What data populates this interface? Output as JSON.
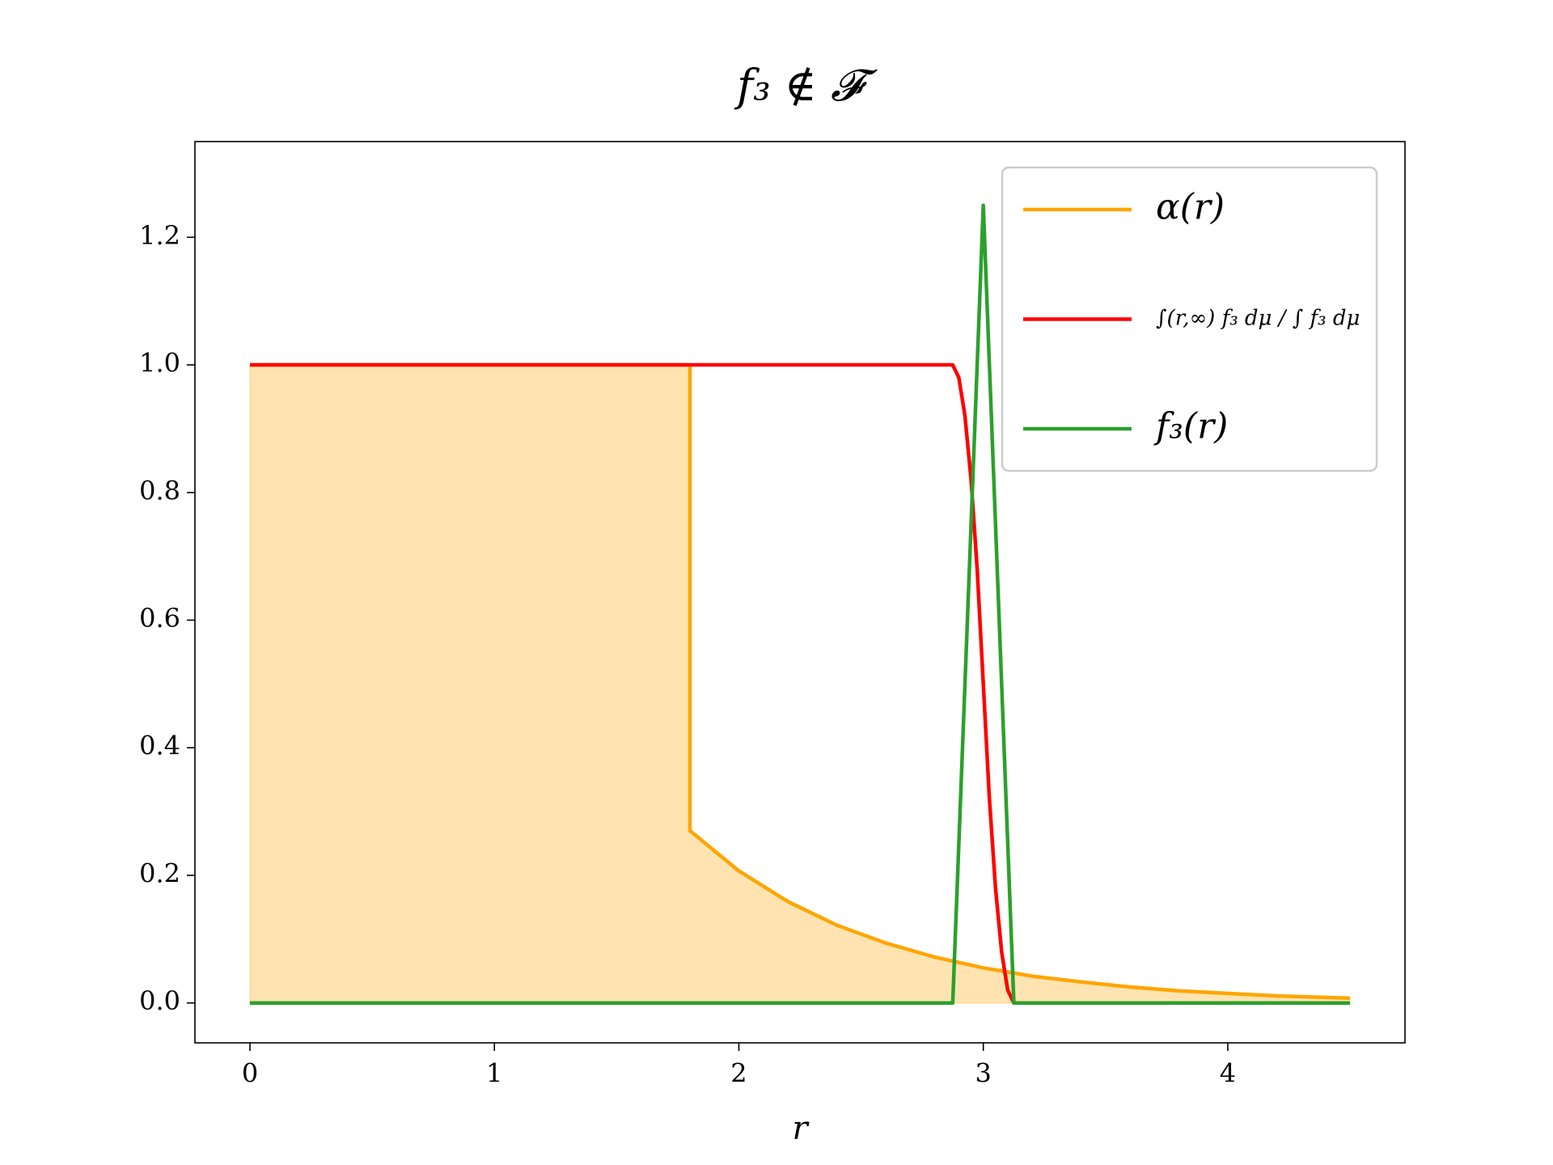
{
  "chart_data": {
    "type": "line",
    "title": "f₃ ∉ 𝓕",
    "x_label": "r",
    "xlim": [
      -0.225,
      4.725
    ],
    "ylim": [
      -0.0625,
      1.35
    ],
    "xticks": [
      0,
      1,
      2,
      3,
      4
    ],
    "yticks": [
      {
        "value": 0,
        "label": "0.0"
      },
      0.2,
      0.4,
      0.6,
      0.8,
      {
        "value": 1,
        "label": "1.0"
      },
      1.2
    ],
    "legend": "upper right",
    "series": [
      {
        "name": "α(r)",
        "color": "#ffa500",
        "fill": true,
        "x": [
          0,
          1.8,
          1.8,
          2.0,
          2.2,
          2.4,
          2.6,
          2.8,
          3.0,
          3.2,
          3.4,
          3.6,
          3.8,
          4.0,
          4.2,
          4.4,
          4.5
        ],
        "values": [
          1,
          1,
          0.27,
          0.207,
          0.159,
          0.122,
          0.094,
          0.072,
          0.055,
          0.042,
          0.033,
          0.025,
          0.019,
          0.015,
          0.011,
          0.0086,
          0.0076
        ]
      },
      {
        "name": "∫(r,∞) f₃ dμ / ∫ f₃ dμ",
        "color": "#ff0000",
        "x": [
          0,
          2.875,
          2.9,
          2.925,
          2.95,
          2.975,
          3.0,
          3.025,
          3.05,
          3.075,
          3.1,
          3.125,
          4.5
        ],
        "values": [
          1,
          1,
          0.98,
          0.92,
          0.82,
          0.68,
          0.5,
          0.32,
          0.18,
          0.08,
          0.02,
          0,
          0
        ]
      },
      {
        "name": "f₃(r)",
        "color": "#2ca02c",
        "x": [
          0,
          2.875,
          3.0,
          3.125,
          4.5
        ],
        "values": [
          0,
          0,
          1.25,
          0,
          0
        ]
      }
    ]
  }
}
